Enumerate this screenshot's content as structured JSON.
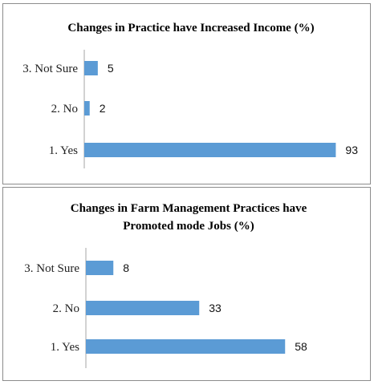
{
  "chart_data": [
    {
      "type": "bar",
      "orientation": "horizontal",
      "title": "Changes in Practice have Increased Income (%)",
      "categories": [
        "3. Not Sure",
        "2. No",
        "1. Yes"
      ],
      "values": [
        5,
        2,
        93
      ],
      "xlim": [
        0,
        100
      ],
      "color": "#5B9BD5",
      "grid": false,
      "legend": "none"
    },
    {
      "type": "bar",
      "orientation": "horizontal",
      "title_lines": [
        "Changes in Farm Management Practices have",
        "Promoted mode Jobs (%)"
      ],
      "categories": [
        "3. Not Sure",
        "2. No",
        "1. Yes"
      ],
      "values": [
        8,
        33,
        58
      ],
      "xlim": [
        0,
        100
      ],
      "color": "#5B9BD5",
      "grid": false,
      "legend": "none"
    }
  ]
}
